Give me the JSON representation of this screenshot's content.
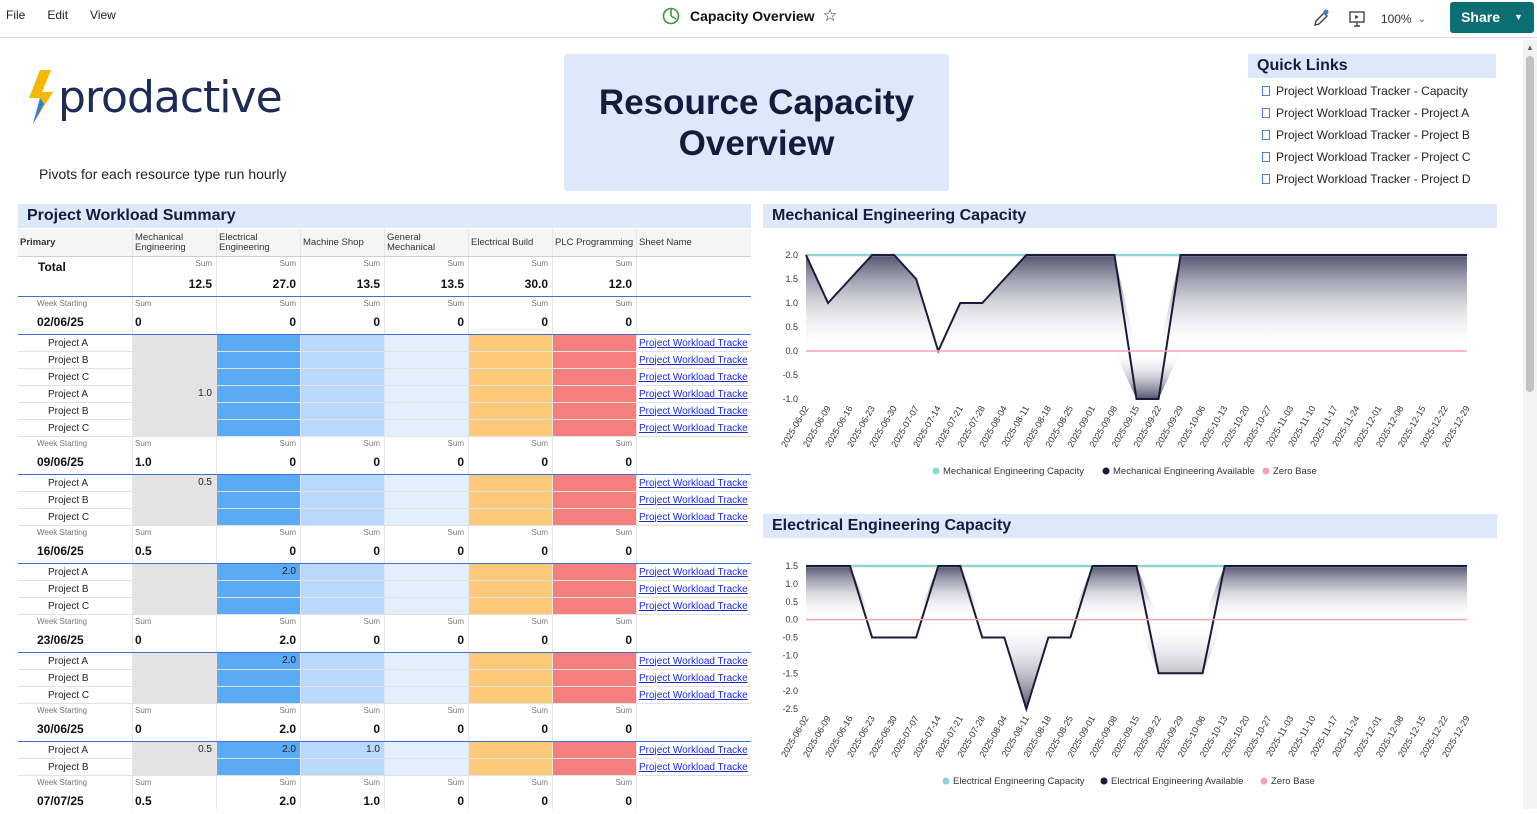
{
  "menu": {
    "file": "File",
    "edit": "Edit",
    "view": "View"
  },
  "doc": {
    "title": "Capacity Overview",
    "zoom": "100%",
    "share": "Share"
  },
  "brand": {
    "logo_text": "prodactive",
    "note": "Pivots for each resource type run hourly"
  },
  "hero": {
    "line1": "Resource Capacity",
    "line2": "Overview"
  },
  "quick_links": {
    "title": "Quick Links",
    "items": [
      "Project Workload Tracker - Capacity",
      "Project Workload Tracker - Project A",
      "Project Workload Tracker - Project B",
      "Project Workload Tracker - Project C",
      "Project Workload Tracker - Project D"
    ]
  },
  "pivot": {
    "title": "Project Workload Summary",
    "headers": [
      "Primary",
      "Mechanical Engineering",
      "Electrical Engineering",
      "Machine Shop",
      "General Mechanical",
      "Electrical Build",
      "PLC Programming",
      "Sheet Name"
    ],
    "total_label": "Total",
    "sum_label": "Sum",
    "week_label": "Week Starting",
    "totals": [
      "12.5",
      "27.0",
      "13.5",
      "13.5",
      "30.0",
      "12.0"
    ],
    "link_text": "Project Workload Tracke",
    "weeks": [
      {
        "date": "02/06/25",
        "sums": [
          "0",
          "0",
          "0",
          "0",
          "0",
          "0"
        ],
        "projects": [
          {
            "name": "Project A",
            "vals": [
              "",
              "",
              "",
              "",
              "",
              ""
            ]
          },
          {
            "name": "Project B",
            "vals": [
              "",
              "",
              "",
              "",
              "",
              ""
            ]
          },
          {
            "name": "Project C",
            "vals": [
              "",
              "",
              "",
              "",
              "",
              ""
            ]
          }
        ]
      },
      {
        "date": "09/06/25",
        "sums": [
          "1.0",
          "0",
          "0",
          "0",
          "0",
          "0"
        ],
        "projects": [
          {
            "name": "Project A",
            "vals": [
              "1.0",
              "",
              "",
              "",
              "",
              ""
            ]
          },
          {
            "name": "Project B",
            "vals": [
              "",
              "",
              "",
              "",
              "",
              ""
            ]
          },
          {
            "name": "Project C",
            "vals": [
              "",
              "",
              "",
              "",
              "",
              ""
            ]
          }
        ]
      },
      {
        "date": "16/06/25",
        "sums": [
          "0.5",
          "0",
          "0",
          "0",
          "0",
          "0"
        ],
        "projects": [
          {
            "name": "Project A",
            "vals": [
              "0.5",
              "",
              "",
              "",
              "",
              ""
            ]
          },
          {
            "name": "Project B",
            "vals": [
              "",
              "",
              "",
              "",
              "",
              ""
            ]
          },
          {
            "name": "Project C",
            "vals": [
              "",
              "",
              "",
              "",
              "",
              ""
            ]
          }
        ]
      },
      {
        "date": "23/06/25",
        "sums": [
          "0",
          "2.0",
          "0",
          "0",
          "0",
          "0"
        ],
        "projects": [
          {
            "name": "Project A",
            "vals": [
              "",
              "2.0",
              "",
              "",
              "",
              ""
            ]
          },
          {
            "name": "Project B",
            "vals": [
              "",
              "",
              "",
              "",
              "",
              ""
            ]
          },
          {
            "name": "Project C",
            "vals": [
              "",
              "",
              "",
              "",
              "",
              ""
            ]
          }
        ]
      },
      {
        "date": "30/06/25",
        "sums": [
          "0",
          "2.0",
          "0",
          "0",
          "0",
          "0"
        ],
        "projects": [
          {
            "name": "Project A",
            "vals": [
              "",
              "2.0",
              "",
              "",
              "",
              ""
            ]
          },
          {
            "name": "Project B",
            "vals": [
              "",
              "",
              "",
              "",
              "",
              ""
            ]
          },
          {
            "name": "Project C",
            "vals": [
              "",
              "",
              "",
              "",
              "",
              ""
            ]
          }
        ]
      },
      {
        "date": "07/07/25",
        "sums": [
          "0.5",
          "2.0",
          "1.0",
          "0",
          "0",
          "0"
        ],
        "projects": [
          {
            "name": "Project A",
            "vals": [
              "0.5",
              "2.0",
              "1.0",
              "",
              "",
              ""
            ]
          },
          {
            "name": "Project B",
            "vals": [
              "",
              "",
              "",
              "",
              "",
              ""
            ]
          }
        ]
      }
    ]
  },
  "chart_data": [
    {
      "type": "area",
      "title": "Mechanical Engineering Capacity",
      "x": [
        "2025-06-02",
        "2025-06-09",
        "2025-06-16",
        "2025-06-23",
        "2025-06-30",
        "2025-07-07",
        "2025-07-14",
        "2025-07-21",
        "2025-07-28",
        "2025-08-04",
        "2025-08-11",
        "2025-08-18",
        "2025-08-25",
        "2025-09-01",
        "2025-09-08",
        "2025-09-15",
        "2025-09-22",
        "2025-09-29",
        "2025-10-06",
        "2025-10-13",
        "2025-10-20",
        "2025-10-27",
        "2025-11-03",
        "2025-11-10",
        "2025-11-17",
        "2025-11-24",
        "2025-12-01",
        "2025-12-08",
        "2025-12-15",
        "2025-12-22",
        "2025-12-29"
      ],
      "yticks": [
        "2.0",
        "1.5",
        "1.0",
        "0.5",
        "0.0",
        "-0.5",
        "-1.0"
      ],
      "ylim": [
        -1,
        2
      ],
      "series": [
        {
          "name": "Mechanical Engineering Capacity",
          "color": "#8fd6d0",
          "values": [
            2,
            2,
            2,
            2,
            2,
            2,
            2,
            2,
            2,
            2,
            2,
            2,
            2,
            2,
            2,
            2,
            2,
            2,
            2,
            2,
            2,
            2,
            2,
            2,
            2,
            2,
            2,
            2,
            2,
            2,
            2
          ]
        },
        {
          "name": "Mechanical Engineering Available",
          "color": "#1c1a3a",
          "values": [
            2,
            1,
            1.5,
            2,
            2,
            1.5,
            0,
            1,
            1,
            1.5,
            2,
            2,
            2,
            2,
            2,
            -1,
            -1,
            2,
            2,
            2,
            2,
            2,
            2,
            2,
            2,
            2,
            2,
            2,
            2,
            2,
            2
          ]
        },
        {
          "name": "Zero Base",
          "color": "#f5a3b5",
          "values": [
            0,
            0,
            0,
            0,
            0,
            0,
            0,
            0,
            0,
            0,
            0,
            0,
            0,
            0,
            0,
            0,
            0,
            0,
            0,
            0,
            0,
            0,
            0,
            0,
            0,
            0,
            0,
            0,
            0,
            0,
            0
          ]
        }
      ],
      "legend": "bottom"
    },
    {
      "type": "area",
      "title": "Electrical Engineering Capacity",
      "x": [
        "2025-06-02",
        "2025-06-09",
        "2025-06-16",
        "2025-06-23",
        "2025-06-30",
        "2025-07-07",
        "2025-07-14",
        "2025-07-21",
        "2025-07-28",
        "2025-08-04",
        "2025-08-11",
        "2025-08-18",
        "2025-08-25",
        "2025-09-01",
        "2025-09-08",
        "2025-09-15",
        "2025-09-22",
        "2025-09-29",
        "2025-10-06",
        "2025-10-13",
        "2025-10-20",
        "2025-10-27",
        "2025-11-03",
        "2025-11-10",
        "2025-11-17",
        "2025-11-24",
        "2025-12-01",
        "2025-12-08",
        "2025-12-15",
        "2025-12-22",
        "2025-12-29"
      ],
      "yticks": [
        "1.5",
        "1.0",
        "0.5",
        "0.0",
        "-0.5",
        "-1.0",
        "-1.5",
        "-2.0",
        "-2.5"
      ],
      "ylim": [
        -2.5,
        1.5
      ],
      "series": [
        {
          "name": "Electrical Engineering Capacity",
          "color": "#8fd6d0",
          "values": [
            1.5,
            1.5,
            1.5,
            1.5,
            1.5,
            1.5,
            1.5,
            1.5,
            1.5,
            1.5,
            1.5,
            1.5,
            1.5,
            1.5,
            1.5,
            1.5,
            1.5,
            1.5,
            1.5,
            1.5,
            1.5,
            1.5,
            1.5,
            1.5,
            1.5,
            1.5,
            1.5,
            1.5,
            1.5,
            1.5,
            1.5
          ]
        },
        {
          "name": "Electrical Engineering Available",
          "color": "#1c1a3a",
          "values": [
            1.5,
            1.5,
            1.5,
            -0.5,
            -0.5,
            -0.5,
            1.5,
            1.5,
            -0.5,
            -0.5,
            -2.5,
            -0.5,
            -0.5,
            1.5,
            1.5,
            1.5,
            -1.5,
            -1.5,
            -1.5,
            1.5,
            1.5,
            1.5,
            1.5,
            1.5,
            1.5,
            1.5,
            1.5,
            1.5,
            1.5,
            1.5,
            1.5
          ]
        },
        {
          "name": "Zero Base",
          "color": "#f5a3b5",
          "values": [
            0,
            0,
            0,
            0,
            0,
            0,
            0,
            0,
            0,
            0,
            0,
            0,
            0,
            0,
            0,
            0,
            0,
            0,
            0,
            0,
            0,
            0,
            0,
            0,
            0,
            0,
            0,
            0,
            0,
            0,
            0
          ]
        }
      ],
      "legend": "bottom"
    }
  ]
}
